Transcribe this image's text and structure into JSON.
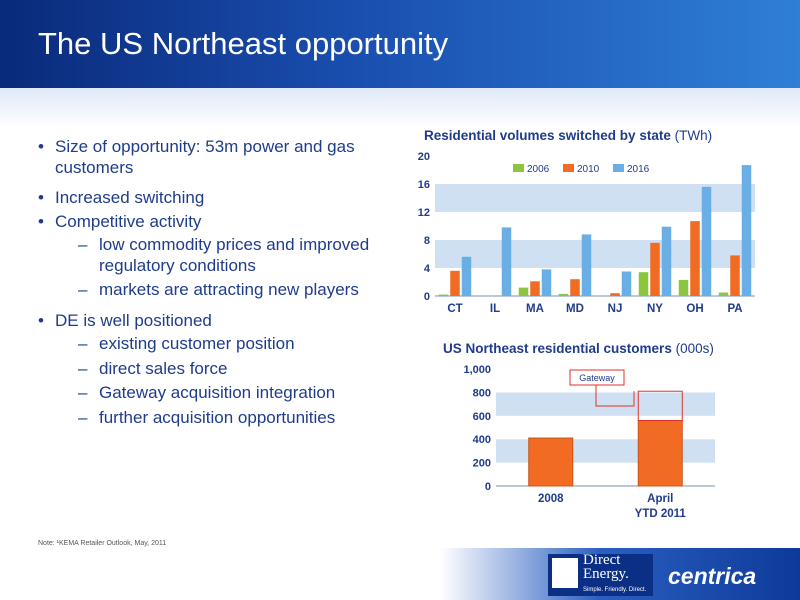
{
  "title": "The US Northeast opportunity",
  "bullets": [
    {
      "level": 1,
      "text": "Size of opportunity: 53m power and gas customers"
    },
    {
      "level": 1,
      "text": "Increased switching"
    },
    {
      "level": 1,
      "text": "Competitive activity"
    },
    {
      "level": 2,
      "text": "low commodity prices and improved regulatory conditions"
    },
    {
      "level": 2,
      "text": "markets are attracting new players"
    },
    {
      "level": 1,
      "text": "DE is well positioned"
    },
    {
      "level": 2,
      "text": "existing customer position"
    },
    {
      "level": 2,
      "text": "direct sales force"
    },
    {
      "level": 2,
      "text": "Gateway acquisition integration"
    },
    {
      "level": 2,
      "text": "further acquisition opportunities"
    }
  ],
  "note": "Note:    ¹KEMA Retailer Outlook, May, 2011",
  "logos": {
    "direct_energy": "Direct Energy.",
    "direct_energy_line1": "Direct",
    "direct_energy_line2": "Energy.",
    "direct_energy_tagline": "Simple. Friendly. Direct.",
    "centrica": "centrica"
  },
  "colors": {
    "title_text": "#ffffff",
    "header_dark": "#0a2a7a",
    "body_text": "#1f3c8c",
    "series_2006": "#8cc63f",
    "series_2010": "#f26b22",
    "series_2016": "#6aaee6",
    "plot_band": "#cfe0f3"
  },
  "chart_data": [
    {
      "type": "bar",
      "title": "Residential volumes switched by state",
      "title_unit": "(TWh)",
      "categories": [
        "CT",
        "IL",
        "MA",
        "MD",
        "NJ",
        "NY",
        "OH",
        "PA"
      ],
      "series": [
        {
          "name": "2006",
          "color": "#8cc63f",
          "values": [
            0.2,
            0,
            1.2,
            0.3,
            0,
            3.4,
            2.3,
            0.5
          ]
        },
        {
          "name": "2010",
          "color": "#f26b22",
          "values": [
            3.6,
            0,
            2.1,
            2.4,
            0.4,
            7.6,
            10.7,
            5.8
          ]
        },
        {
          "name": "2016",
          "color": "#6aaee6",
          "values": [
            5.6,
            9.8,
            3.8,
            8.8,
            3.5,
            9.9,
            15.6,
            18.7
          ]
        }
      ],
      "yticks": [
        "0",
        "4",
        "8",
        "12",
        "16",
        "20"
      ],
      "ylim": [
        0,
        20
      ],
      "legend": "top-right",
      "grid": false
    },
    {
      "type": "bar",
      "title": "US Northeast residential customers",
      "title_unit": "(000s)",
      "categories": [
        "2008",
        "April YTD 2011"
      ],
      "category_lines": [
        [
          "2008"
        ],
        [
          "April",
          "YTD 2011"
        ]
      ],
      "series": [
        {
          "name": "",
          "color": "#f26b22",
          "values": [
            410,
            560
          ]
        }
      ],
      "overlay": {
        "label": "Gateway",
        "category": "April YTD 2011",
        "value_top": 810
      },
      "yticks": [
        "0",
        "200",
        "400",
        "600",
        "800",
        "1,000"
      ],
      "ylim": [
        0,
        1000
      ],
      "grid": false
    }
  ]
}
